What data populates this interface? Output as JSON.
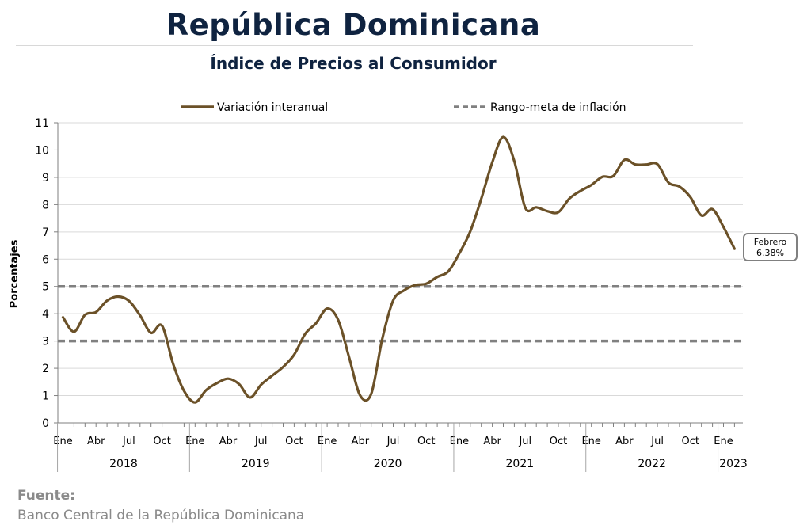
{
  "header": {
    "title": "República Dominicana",
    "subtitle": "Índice de Precios al Consumidor"
  },
  "source": {
    "label": "Fuente:",
    "text": "Banco Central de la República Dominicana"
  },
  "colors": {
    "series_line": "#6b5128",
    "target_band": "#808080",
    "grid": "#d9d9d9",
    "title": "#0f2340"
  },
  "chart_data": {
    "type": "line",
    "ylabel": "Porcentajes",
    "xlabel": "",
    "ylim": [
      0,
      11
    ],
    "yticks": [
      0,
      1,
      2,
      3,
      4,
      5,
      6,
      7,
      8,
      9,
      10,
      11
    ],
    "grid": "horizontal",
    "legend_position": "top",
    "month_tick_labels": [
      "Ene",
      "Abr",
      "Jul",
      "Oct"
    ],
    "years": [
      "2018",
      "2019",
      "2020",
      "2021",
      "2022",
      "2023"
    ],
    "x": [
      "2018-01",
      "2018-02",
      "2018-03",
      "2018-04",
      "2018-05",
      "2018-06",
      "2018-07",
      "2018-08",
      "2018-09",
      "2018-10",
      "2018-11",
      "2018-12",
      "2019-01",
      "2019-02",
      "2019-03",
      "2019-04",
      "2019-05",
      "2019-06",
      "2019-07",
      "2019-08",
      "2019-09",
      "2019-10",
      "2019-11",
      "2019-12",
      "2020-01",
      "2020-02",
      "2020-03",
      "2020-04",
      "2020-05",
      "2020-06",
      "2020-07",
      "2020-08",
      "2020-09",
      "2020-10",
      "2020-11",
      "2020-12",
      "2021-01",
      "2021-02",
      "2021-03",
      "2021-04",
      "2021-05",
      "2021-06",
      "2021-07",
      "2021-08",
      "2021-09",
      "2021-10",
      "2021-11",
      "2021-12",
      "2022-01",
      "2022-02",
      "2022-03",
      "2022-04",
      "2022-05",
      "2022-06",
      "2022-07",
      "2022-08",
      "2022-09",
      "2022-10",
      "2022-11",
      "2022-12",
      "2023-01",
      "2023-02"
    ],
    "series": [
      {
        "name": "Variación interanual",
        "values": [
          3.87,
          3.34,
          3.96,
          4.06,
          4.48,
          4.63,
          4.47,
          3.94,
          3.3,
          3.56,
          2.17,
          1.17,
          0.75,
          1.2,
          1.46,
          1.62,
          1.42,
          0.93,
          1.4,
          1.73,
          2.05,
          2.5,
          3.26,
          3.66,
          4.19,
          3.77,
          2.39,
          1.0,
          1.06,
          3.07,
          4.49,
          4.86,
          5.05,
          5.1,
          5.35,
          5.55,
          6.21,
          7.02,
          8.22,
          9.55,
          10.48,
          9.59,
          7.88,
          7.9,
          7.76,
          7.72,
          8.22,
          8.5,
          8.72,
          9.02,
          9.05,
          9.64,
          9.47,
          9.47,
          9.48,
          8.81,
          8.66,
          8.27,
          7.6,
          7.83,
          7.18,
          6.38
        ]
      },
      {
        "name": "Rango-meta de inflación",
        "style": "dashed",
        "bounds": [
          3,
          5
        ]
      }
    ],
    "annotation": {
      "label": "Febrero",
      "value_text": "6.38%",
      "at": "2023-02"
    }
  }
}
